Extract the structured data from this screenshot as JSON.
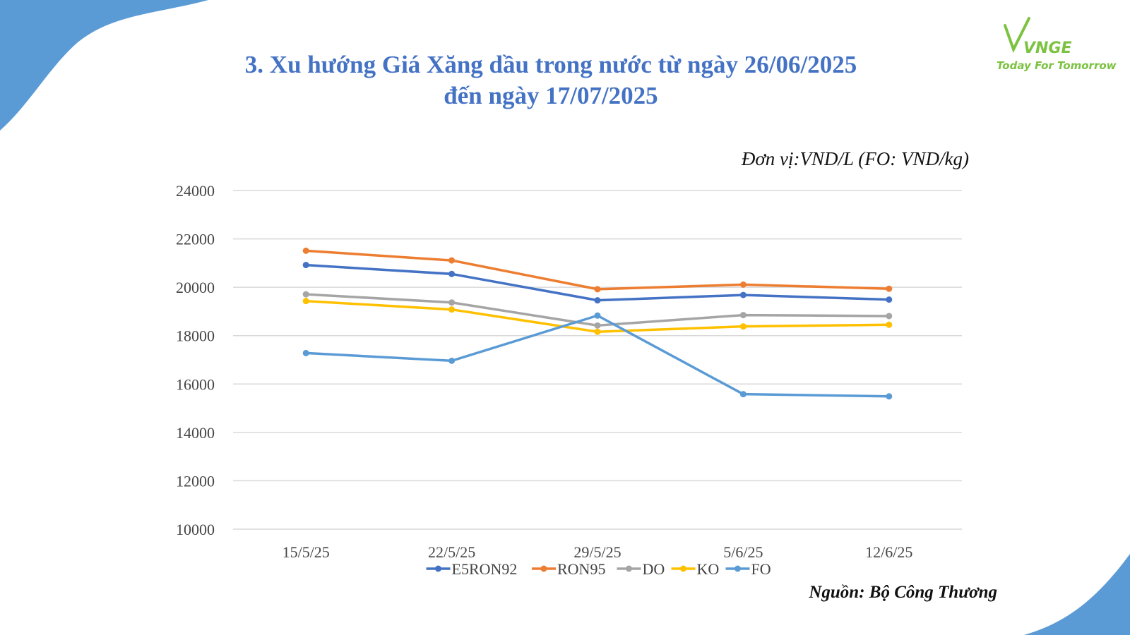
{
  "header": {
    "title_line1": "3. Xu hướng Giá Xăng dầu trong nước từ ngày 26/06/2025",
    "title_line2": "đến ngày 17/07/2025",
    "unit": "Đơn vị:VND/L (FO: VND/kg)",
    "source": "Nguồn: Bộ Công Thương"
  },
  "logo": {
    "wordmark": "VNGE",
    "tagline": "Today For Tomorrow",
    "color": "#7cc241"
  },
  "colors": {
    "title": "#4472c4",
    "decor": "#5b9bd5",
    "grid": "#d9d9d9"
  },
  "chart_data": {
    "type": "line",
    "categories": [
      "15/5/25",
      "22/5/25",
      "29/5/25",
      "5/6/25",
      "12/6/25"
    ],
    "ylim": [
      10000,
      24000
    ],
    "yticks": [
      24000,
      22000,
      20000,
      18000,
      16000,
      14000,
      12000,
      10000
    ],
    "grid": true,
    "legend_position": "bottom",
    "series": [
      {
        "name": "E5RON92",
        "color": "#4472c4",
        "values": [
          20920,
          20550,
          19460,
          19680,
          19490
        ]
      },
      {
        "name": "RON95",
        "color": "#ed7d31",
        "values": [
          21510,
          21110,
          19920,
          20110,
          19940
        ]
      },
      {
        "name": "DO",
        "color": "#a5a5a5",
        "values": [
          19710,
          19370,
          18420,
          18850,
          18810
        ]
      },
      {
        "name": "KO",
        "color": "#ffc000",
        "values": [
          19430,
          19080,
          18160,
          18380,
          18450
        ]
      },
      {
        "name": "FO",
        "color": "#5b9bd5",
        "values": [
          17280,
          16960,
          18830,
          15580,
          15490
        ]
      }
    ]
  }
}
